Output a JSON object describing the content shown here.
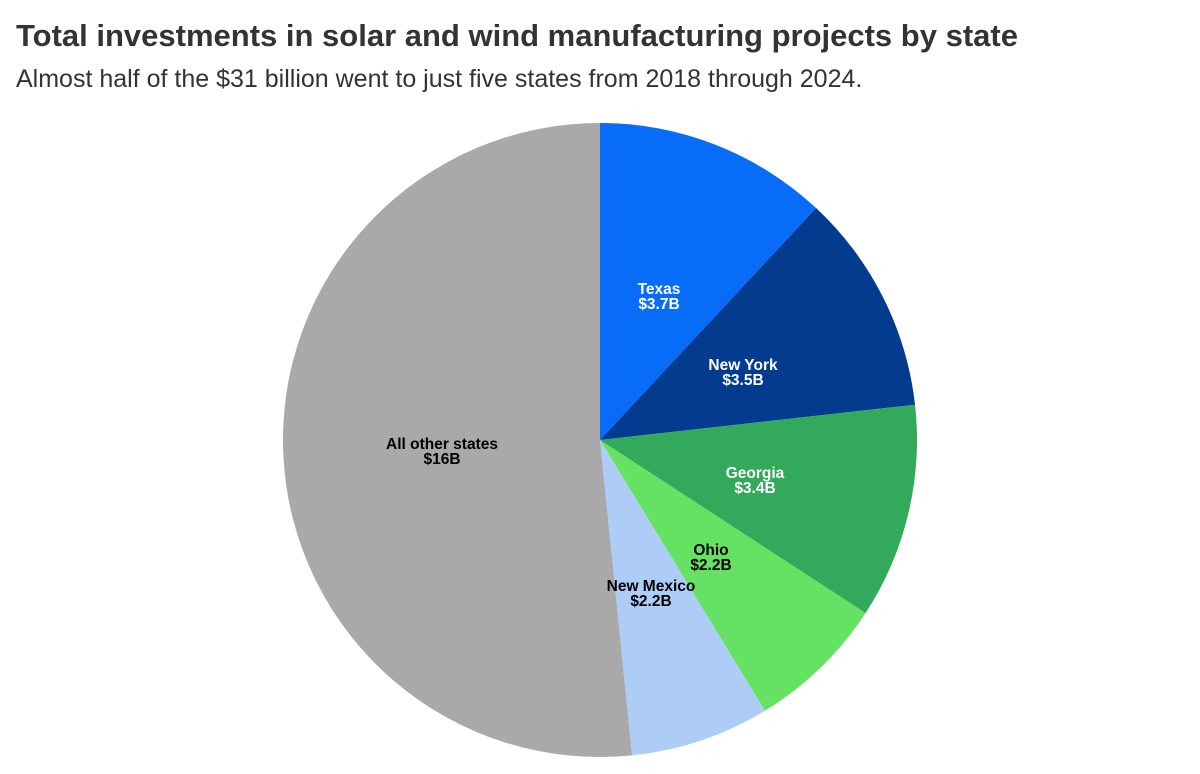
{
  "header": {
    "title": "Total investments in solar and wind manufacturing projects by state",
    "subtitle": "Almost half of the $31 billion went to just five states from 2018 through 2024."
  },
  "chart_data": {
    "type": "pie",
    "title": "Total investments in solar and wind manufacturing projects by state",
    "subtitle": "Almost half of the $31 billion went to just five states from 2018 through 2024.",
    "unit": "billion USD",
    "start_angle": "12 o'clock",
    "direction": "clockwise",
    "slices": [
      {
        "name": "Texas",
        "label": "$3.7B",
        "value": 3.7,
        "color": "#076cf7",
        "text_color": "#ffffff"
      },
      {
        "name": "New York",
        "label": "$3.5B",
        "value": 3.5,
        "color": "#033c8e",
        "text_color": "#ffffff"
      },
      {
        "name": "Georgia",
        "label": "$3.4B",
        "value": 3.4,
        "color": "#33a95c",
        "text_color": "#ffffff"
      },
      {
        "name": "Ohio",
        "label": "$2.2B",
        "value": 2.2,
        "color": "#65e163",
        "text_color": "#000000"
      },
      {
        "name": "New Mexico",
        "label": "$2.2B",
        "value": 2.2,
        "color": "#adcdf8",
        "text_color": "#000000"
      },
      {
        "name": "All other states",
        "label": "$16B",
        "value": 16,
        "color": "#a9a9a9",
        "text_color": "#000000"
      }
    ]
  }
}
